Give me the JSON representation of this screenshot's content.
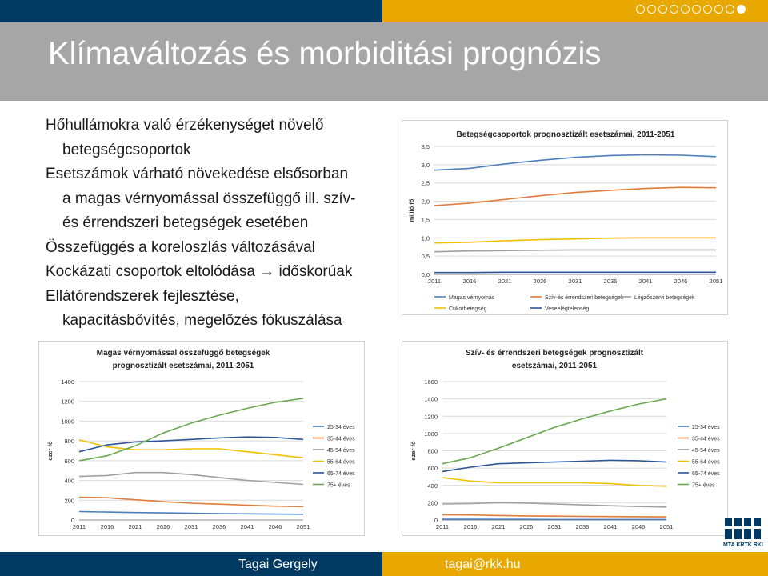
{
  "slide": {
    "title": "Klímaváltozás és morbiditási prognózis",
    "bullets": [
      "Hőhullámokra való érzékenységet növelő",
      "betegségcsoportok",
      "Esetszámok várható növekedése elsősorban",
      "a magas vérnyomással összefüggő ill. szív-",
      "és érrendszeri betegségek esetében",
      "Összefüggés a koreloszlás változásával",
      "Kockázati csoportok eltolódása → időskorúak",
      "Ellátórendszerek fejlesztése,",
      "kapacitásbővítés, megelőzés fókuszálása"
    ],
    "footer": {
      "name": "Tagai Gergely",
      "email": "tagai@rkk.hu"
    },
    "logo": {
      "text": "MTA KRTK RKI"
    },
    "colors": {
      "header": "#003a63",
      "accent": "#e8a800",
      "title_bg": "#a6a6a6"
    }
  },
  "chart_data": [
    {
      "type": "line",
      "title": "Betegségcsoportok prognosztizált esetszámai, 2011-2051",
      "ylabel": "millió fő",
      "ylim": [
        0,
        3.5
      ],
      "yticks": [
        "0,0",
        "0,5",
        "1,0",
        "1,5",
        "2,0",
        "2,5",
        "3,0",
        "3,5"
      ],
      "x": [
        "2011",
        "2016",
        "2021",
        "2026",
        "2031",
        "2036",
        "2041",
        "2046",
        "2051"
      ],
      "series": [
        {
          "name": "Magas vérnyomás",
          "color": "#4a7ebb",
          "values": [
            2.85,
            2.9,
            3.02,
            3.12,
            3.2,
            3.25,
            3.27,
            3.26,
            3.22
          ]
        },
        {
          "name": "Szív-és érrendszeri betegségek",
          "color": "#e07b39",
          "values": [
            1.88,
            1.95,
            2.05,
            2.15,
            2.24,
            2.3,
            2.35,
            2.38,
            2.37
          ]
        },
        {
          "name": "Légzőszervi betegségek",
          "color": "#a0a0a0",
          "values": [
            0.62,
            0.64,
            0.65,
            0.66,
            0.67,
            0.67,
            0.67,
            0.67,
            0.67
          ]
        },
        {
          "name": "Cukorbetegség",
          "color": "#f0c000",
          "values": [
            0.86,
            0.88,
            0.92,
            0.95,
            0.97,
            0.99,
            1.0,
            1.0,
            1.0
          ]
        },
        {
          "name": "Veseelégtelenség",
          "color": "#2e5597",
          "values": [
            0.05,
            0.05,
            0.06,
            0.06,
            0.06,
            0.06,
            0.06,
            0.06,
            0.06
          ]
        }
      ]
    },
    {
      "type": "line",
      "title": "Magas vérnyomással összefüggő betegségek prognosztizált esetszámai, 2011-2051",
      "title_lines": [
        "Magas vérnyomással összefüggő betegségek",
        "prognosztizált esetszámai, 2011-2051"
      ],
      "ylabel": "ezer fő",
      "ylim": [
        0,
        1400
      ],
      "yticks": [
        "0",
        "200",
        "400",
        "600",
        "800",
        "1000",
        "1200",
        "1400"
      ],
      "x": [
        "2011",
        "2016",
        "2021",
        "2026",
        "2031",
        "2036",
        "2041",
        "2046",
        "2051"
      ],
      "series": [
        {
          "name": "25-34 éves",
          "color": "#4a7ebb",
          "values": [
            85,
            80,
            75,
            72,
            68,
            65,
            62,
            60,
            58
          ]
        },
        {
          "name": "35-44 éves",
          "color": "#e07b39",
          "values": [
            230,
            225,
            205,
            185,
            170,
            160,
            150,
            140,
            135
          ]
        },
        {
          "name": "45-54 éves",
          "color": "#a0a0a0",
          "values": [
            440,
            450,
            480,
            480,
            460,
            430,
            400,
            380,
            360
          ]
        },
        {
          "name": "55-64 éves",
          "color": "#f0c000",
          "values": [
            810,
            740,
            710,
            710,
            720,
            720,
            690,
            660,
            630
          ]
        },
        {
          "name": "65-74 éves",
          "color": "#2e5597",
          "values": [
            690,
            760,
            790,
            800,
            815,
            830,
            840,
            835,
            815
          ]
        },
        {
          "name": "75+ éves",
          "color": "#6aa84f",
          "values": [
            600,
            650,
            750,
            880,
            980,
            1060,
            1130,
            1190,
            1230
          ]
        }
      ]
    },
    {
      "type": "line",
      "title": "Szív- és érrendszeri betegségek prognosztizált esetszámai, 2011-2051",
      "title_lines": [
        "Szív- és érrendszeri betegségek prognosztizált",
        "esetszámai, 2011-2051"
      ],
      "ylabel": "ezer fő",
      "ylim": [
        0,
        1600
      ],
      "yticks": [
        "0",
        "200",
        "400",
        "600",
        "800",
        "1000",
        "1200",
        "1400",
        "1600"
      ],
      "x": [
        "2011",
        "2016",
        "2021",
        "2026",
        "2031",
        "2036",
        "2041",
        "2046",
        "2051"
      ],
      "series": [
        {
          "name": "25-34 éves",
          "color": "#4a7ebb",
          "values": [
            8,
            8,
            7,
            7,
            6,
            6,
            6,
            6,
            6
          ]
        },
        {
          "name": "35-44 éves",
          "color": "#e07b39",
          "values": [
            60,
            58,
            52,
            47,
            44,
            42,
            40,
            38,
            36
          ]
        },
        {
          "name": "45-54 éves",
          "color": "#a0a0a0",
          "values": [
            185,
            190,
            200,
            195,
            185,
            175,
            165,
            155,
            150
          ]
        },
        {
          "name": "55-64 éves",
          "color": "#f0c000",
          "values": [
            490,
            450,
            430,
            430,
            430,
            430,
            420,
            400,
            390
          ]
        },
        {
          "name": "65-74 éves",
          "color": "#2e5597",
          "values": [
            560,
            610,
            650,
            660,
            670,
            680,
            690,
            685,
            670
          ]
        },
        {
          "name": "75+ éves",
          "color": "#6aa84f",
          "values": [
            650,
            720,
            830,
            950,
            1070,
            1170,
            1260,
            1340,
            1400
          ]
        }
      ]
    }
  ]
}
